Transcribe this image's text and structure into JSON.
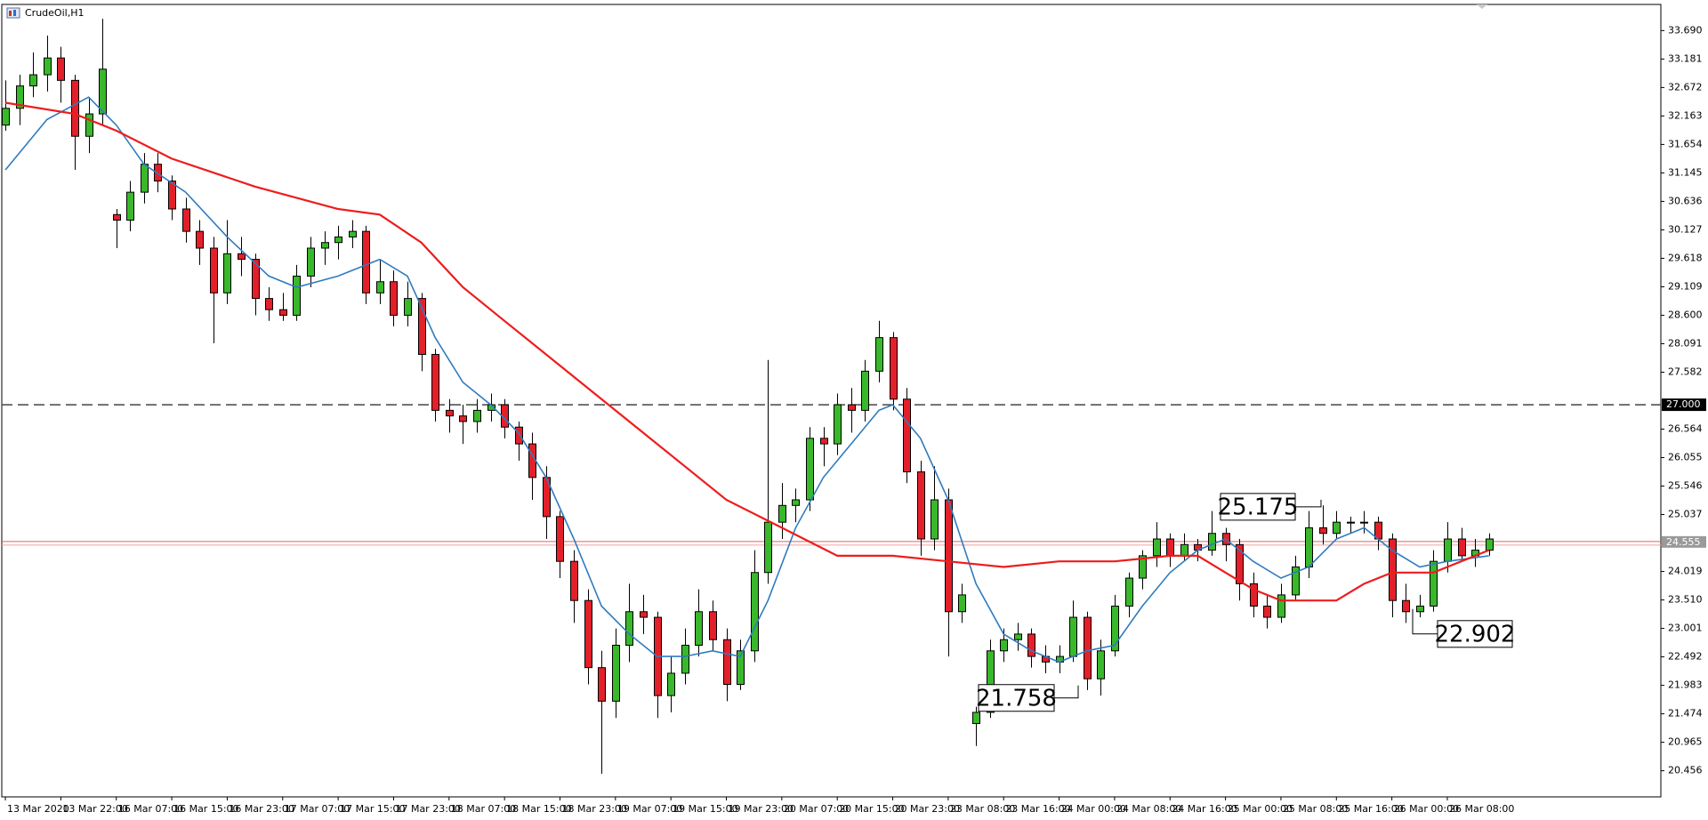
{
  "chart_data": {
    "type": "candlestick",
    "title": "CrudeOil,H1",
    "bull_color": "#39b82b",
    "bear_color": "#e3202a",
    "ohlc": [
      [
        32.0,
        32.8,
        31.9,
        32.3
      ],
      [
        32.3,
        32.9,
        32.0,
        32.7
      ],
      [
        32.7,
        33.3,
        32.5,
        32.9
      ],
      [
        32.9,
        33.6,
        32.6,
        33.2
      ],
      [
        33.2,
        33.4,
        32.4,
        32.8
      ],
      [
        32.8,
        32.9,
        31.2,
        31.8
      ],
      [
        31.8,
        32.5,
        31.5,
        32.2
      ],
      [
        32.2,
        33.9,
        32.0,
        33.0
      ],
      [
        30.4,
        30.5,
        29.8,
        30.3
      ],
      [
        30.3,
        31.0,
        30.1,
        30.8
      ],
      [
        30.8,
        31.5,
        30.6,
        31.3
      ],
      [
        31.3,
        31.5,
        30.8,
        31.0
      ],
      [
        31.0,
        31.1,
        30.3,
        30.5
      ],
      [
        30.5,
        30.7,
        29.9,
        30.1
      ],
      [
        30.1,
        30.3,
        29.5,
        29.8
      ],
      [
        29.8,
        30.0,
        28.1,
        29.0
      ],
      [
        29.0,
        30.3,
        28.8,
        29.7
      ],
      [
        29.7,
        30.0,
        29.3,
        29.6
      ],
      [
        29.6,
        29.7,
        28.6,
        28.9
      ],
      [
        28.9,
        29.1,
        28.5,
        28.7
      ],
      [
        28.7,
        29.0,
        28.5,
        28.6
      ],
      [
        28.6,
        29.5,
        28.5,
        29.3
      ],
      [
        29.3,
        30.0,
        29.1,
        29.8
      ],
      [
        29.8,
        30.1,
        29.5,
        29.9
      ],
      [
        29.9,
        30.2,
        29.6,
        30.0
      ],
      [
        30.0,
        30.3,
        29.8,
        30.1
      ],
      [
        30.1,
        30.2,
        28.8,
        29.0
      ],
      [
        29.0,
        29.6,
        28.8,
        29.2
      ],
      [
        29.2,
        29.4,
        28.4,
        28.6
      ],
      [
        28.6,
        29.2,
        28.4,
        28.9
      ],
      [
        28.9,
        29.0,
        27.6,
        27.9
      ],
      [
        27.9,
        28.0,
        26.7,
        26.9
      ],
      [
        26.9,
        27.1,
        26.5,
        26.8
      ],
      [
        26.8,
        27.0,
        26.3,
        26.7
      ],
      [
        26.7,
        27.1,
        26.5,
        26.9
      ],
      [
        26.9,
        27.2,
        26.7,
        27.0
      ],
      [
        27.0,
        27.1,
        26.4,
        26.6
      ],
      [
        26.6,
        26.7,
        26.0,
        26.3
      ],
      [
        26.3,
        26.5,
        25.3,
        25.7
      ],
      [
        25.7,
        25.9,
        24.6,
        25.0
      ],
      [
        25.0,
        25.1,
        23.9,
        24.2
      ],
      [
        24.2,
        24.4,
        23.1,
        23.5
      ],
      [
        23.5,
        23.7,
        22.0,
        22.3
      ],
      [
        22.3,
        22.6,
        20.4,
        21.7
      ],
      [
        21.7,
        23.0,
        21.4,
        22.7
      ],
      [
        22.7,
        23.8,
        22.4,
        23.3
      ],
      [
        23.3,
        23.6,
        22.9,
        23.2
      ],
      [
        23.2,
        23.3,
        21.4,
        21.8
      ],
      [
        21.8,
        22.5,
        21.5,
        22.2
      ],
      [
        22.2,
        23.0,
        22.0,
        22.7
      ],
      [
        22.7,
        23.7,
        22.5,
        23.3
      ],
      [
        23.3,
        23.5,
        22.6,
        22.8
      ],
      [
        22.8,
        23.0,
        21.7,
        22.0
      ],
      [
        22.0,
        22.8,
        21.9,
        22.6
      ],
      [
        22.6,
        24.4,
        22.4,
        24.0
      ],
      [
        24.0,
        27.8,
        23.8,
        24.9
      ],
      [
        24.9,
        25.6,
        24.6,
        25.2
      ],
      [
        25.2,
        25.5,
        24.9,
        25.3
      ],
      [
        25.3,
        26.6,
        25.1,
        26.4
      ],
      [
        26.4,
        26.6,
        25.9,
        26.3
      ],
      [
        26.3,
        27.2,
        26.1,
        27.0
      ],
      [
        27.0,
        27.3,
        26.5,
        26.9
      ],
      [
        26.9,
        27.8,
        26.7,
        27.6
      ],
      [
        27.6,
        28.5,
        27.4,
        28.2
      ],
      [
        28.2,
        28.3,
        26.9,
        27.1
      ],
      [
        27.1,
        27.3,
        25.6,
        25.8
      ],
      [
        25.8,
        26.0,
        24.3,
        24.6
      ],
      [
        24.6,
        25.9,
        24.4,
        25.3
      ],
      [
        25.3,
        25.5,
        22.5,
        23.3
      ],
      [
        23.3,
        23.8,
        23.1,
        23.6
      ],
      [
        21.3,
        21.6,
        20.9,
        21.5
      ],
      [
        21.5,
        22.8,
        21.4,
        22.6
      ],
      [
        22.6,
        23.0,
        22.4,
        22.8
      ],
      [
        22.8,
        23.1,
        22.6,
        22.9
      ],
      [
        22.9,
        23.0,
        22.3,
        22.5
      ],
      [
        22.5,
        22.7,
        22.2,
        22.4
      ],
      [
        22.4,
        22.7,
        22.2,
        22.5
      ],
      [
        22.5,
        23.5,
        22.4,
        23.2
      ],
      [
        23.2,
        23.3,
        21.9,
        22.1
      ],
      [
        22.1,
        22.8,
        21.8,
        22.6
      ],
      [
        22.6,
        23.6,
        22.5,
        23.4
      ],
      [
        23.4,
        24.0,
        23.2,
        23.9
      ],
      [
        23.9,
        24.4,
        23.7,
        24.3
      ],
      [
        24.3,
        24.9,
        24.1,
        24.6
      ],
      [
        24.6,
        24.7,
        24.1,
        24.3
      ],
      [
        24.3,
        24.7,
        24.2,
        24.5
      ],
      [
        24.5,
        24.6,
        24.2,
        24.4
      ],
      [
        24.4,
        25.1,
        24.3,
        24.7
      ],
      [
        24.7,
        24.8,
        24.2,
        24.5
      ],
      [
        24.5,
        24.6,
        23.5,
        23.8
      ],
      [
        23.8,
        24.0,
        23.2,
        23.4
      ],
      [
        23.4,
        23.6,
        23.0,
        23.2
      ],
      [
        23.2,
        23.8,
        23.1,
        23.6
      ],
      [
        23.6,
        24.3,
        23.5,
        24.1
      ],
      [
        24.1,
        25.1,
        23.9,
        24.8
      ],
      [
        24.8,
        25.2,
        24.5,
        24.7
      ],
      [
        24.7,
        25.1,
        24.6,
        24.9
      ],
      [
        24.9,
        25.0,
        24.7,
        24.9
      ],
      [
        24.9,
        25.1,
        24.7,
        24.9
      ],
      [
        24.9,
        25.0,
        24.4,
        24.6
      ],
      [
        24.6,
        24.7,
        23.2,
        23.5
      ],
      [
        23.5,
        23.8,
        23.1,
        23.3
      ],
      [
        23.3,
        23.6,
        23.2,
        23.4
      ],
      [
        23.4,
        24.4,
        23.3,
        24.2
      ],
      [
        24.2,
        24.9,
        24.0,
        24.6
      ],
      [
        24.6,
        24.8,
        24.2,
        24.3
      ],
      [
        24.3,
        24.6,
        24.1,
        24.4
      ],
      [
        24.4,
        24.7,
        24.3,
        24.6
      ]
    ],
    "lines": [
      {
        "color": "#2f7bbf",
        "x": [
          0,
          3,
          6,
          8,
          10,
          13,
          16,
          19,
          21,
          24,
          27,
          29,
          31,
          33,
          35,
          37,
          39,
          41,
          43,
          45,
          47,
          49,
          51,
          53,
          55,
          57,
          59,
          61,
          63,
          64,
          66,
          68,
          70,
          72,
          74,
          76,
          78,
          80,
          82,
          84,
          86,
          88,
          90,
          92,
          94,
          96,
          98,
          100,
          102,
          104,
          107
        ],
        "values": [
          31.2,
          32.1,
          32.5,
          32.0,
          31.3,
          30.8,
          30.0,
          29.3,
          29.1,
          29.3,
          29.6,
          29.3,
          28.2,
          27.4,
          27.0,
          26.5,
          25.7,
          24.6,
          23.4,
          22.9,
          22.5,
          22.5,
          22.6,
          22.5,
          23.5,
          24.8,
          25.7,
          26.3,
          26.9,
          27.0,
          26.4,
          25.3,
          23.8,
          22.9,
          22.6,
          22.4,
          22.6,
          22.7,
          23.4,
          24.0,
          24.4,
          24.6,
          24.2,
          23.9,
          24.1,
          24.6,
          24.8,
          24.4,
          24.1,
          24.2,
          24.3
        ]
      },
      {
        "color": "#ee1c1c",
        "x": [
          0,
          5,
          8,
          12,
          18,
          24,
          27,
          30,
          33,
          36,
          40,
          44,
          48,
          52,
          56,
          60,
          64,
          68,
          72,
          76,
          80,
          84,
          86,
          88,
          90,
          92,
          96,
          98,
          100,
          103,
          105,
          107
        ],
        "values": [
          32.4,
          32.2,
          31.9,
          31.4,
          30.9,
          30.5,
          30.4,
          29.9,
          29.1,
          28.5,
          27.7,
          26.9,
          26.1,
          25.3,
          24.8,
          24.3,
          24.3,
          24.2,
          24.1,
          24.2,
          24.2,
          24.3,
          24.3,
          24.0,
          23.7,
          23.5,
          23.5,
          23.8,
          24.0,
          24.0,
          24.2,
          24.4
        ]
      }
    ],
    "hline": {
      "value": 27,
      "label": "27.000"
    },
    "price": 24.555,
    "annotations": [
      25.175,
      22.902,
      21.758
    ],
    "xlim": [
      -0.26,
      119.4
    ],
    "ylim": [
      19.989,
      34.157
    ],
    "yticks": [
      {
        "value": 33.69,
        "label": "33.690"
      },
      33.181,
      32.672,
      32.163,
      31.654,
      31.145,
      30.636,
      30.127,
      29.618,
      29.109,
      {
        "value": 28.6,
        "label": "28.600"
      },
      28.091,
      27.582,
      26.564,
      26.055,
      25.546,
      25.037,
      24.019,
      {
        "value": 23.51,
        "label": "23.510"
      },
      23.001,
      22.492,
      21.983,
      21.474,
      20.965,
      20.456
    ],
    "xticks": [
      {
        "value": 0,
        "label": "13 Mar 2020"
      },
      {
        "value": 4,
        "label": "13 Mar 22:00"
      },
      {
        "value": 8,
        "label": "16 Mar 07:00"
      },
      {
        "value": 12,
        "label": "16 Mar 15:00"
      },
      {
        "value": 16,
        "label": "16 Mar 23:00"
      },
      {
        "value": 20,
        "label": "17 Mar 07:00"
      },
      {
        "value": 24,
        "label": "17 Mar 15:00"
      },
      {
        "value": 28,
        "label": "17 Mar 23:00"
      },
      {
        "value": 32,
        "label": "18 Mar 07:00"
      },
      {
        "value": 36,
        "label": "18 Mar 15:00"
      },
      {
        "value": 40,
        "label": "18 Mar 23:00"
      },
      {
        "value": 44,
        "label": "19 Mar 07:00"
      },
      {
        "value": 48,
        "label": "19 Mar 15:00"
      },
      {
        "value": 52,
        "label": "19 Mar 23:00"
      },
      {
        "value": 56,
        "label": "20 Mar 07:00"
      },
      {
        "value": 60,
        "label": "20 Mar 15:00"
      },
      {
        "value": 64,
        "label": "20 Mar 23:00"
      },
      {
        "value": 68,
        "label": "23 Mar 08:00"
      },
      {
        "value": 72,
        "label": "23 Mar 16:00"
      },
      {
        "value": 76,
        "label": "24 Mar 00:00"
      },
      {
        "value": 80,
        "label": "24 Mar 08:00"
      },
      {
        "value": 84,
        "label": "24 Mar 16:00"
      },
      {
        "value": 88,
        "label": "25 Mar 00:00"
      },
      {
        "value": 92,
        "label": "25 Mar 08:00"
      },
      {
        "value": 96,
        "label": "25 Mar 16:00"
      },
      {
        "value": 100,
        "label": "26 Mar 00:00"
      },
      {
        "value": 104,
        "label": "26 Mar 08:00"
      }
    ]
  }
}
